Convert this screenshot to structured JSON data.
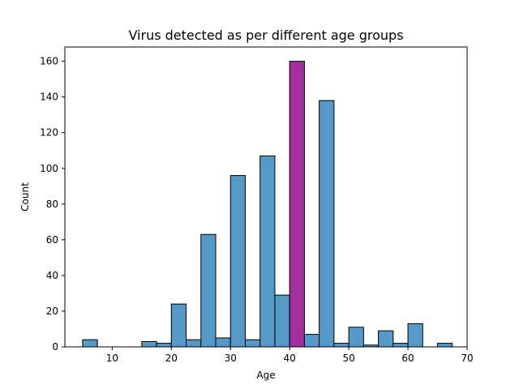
{
  "chart_data": {
    "type": "bar",
    "title": "Virus detected as per different age groups",
    "xlabel": "Age",
    "ylabel": "Count",
    "xlim": [
      2.0,
      70.0
    ],
    "ylim": [
      0,
      168
    ],
    "xticks": [
      10,
      20,
      30,
      40,
      50,
      60,
      70
    ],
    "yticks": [
      0,
      20,
      40,
      60,
      80,
      100,
      120,
      140,
      160
    ],
    "grid": false,
    "bin_width": 2.5,
    "bin_start": 5,
    "values": [
      4,
      0,
      0,
      0,
      3,
      2,
      24,
      4,
      63,
      5,
      96,
      4,
      107,
      29,
      160,
      7,
      138,
      2,
      11,
      1,
      9,
      2,
      13,
      0,
      2
    ],
    "bar_color": "#5499c7",
    "highlight_color": "#a1309e",
    "highlight_index": 14,
    "edge_color": "#000000"
  }
}
